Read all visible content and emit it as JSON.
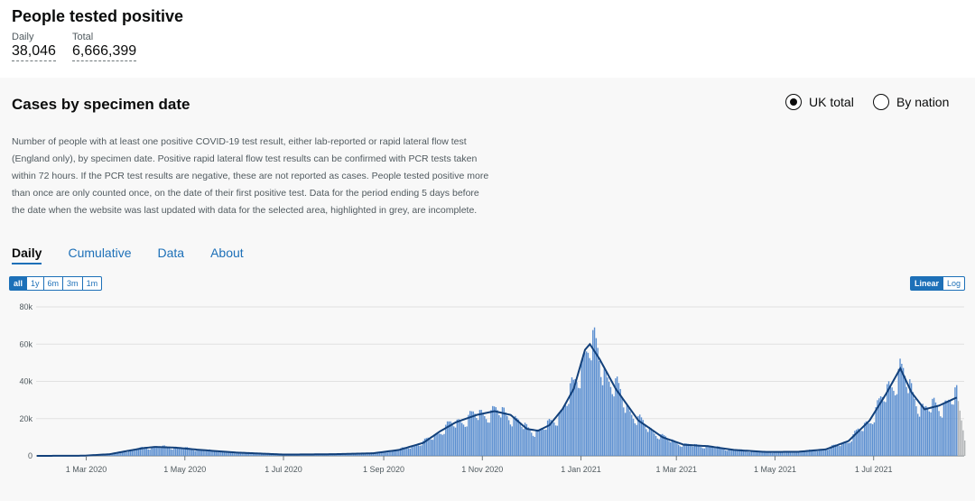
{
  "headline": {
    "title": "People tested positive",
    "daily_label": "Daily",
    "daily_value": "38,046",
    "total_label": "Total",
    "total_value": "6,666,399"
  },
  "card": {
    "title": "Cases by specimen date",
    "radio_uk": "UK total",
    "radio_nation": "By nation",
    "description": "Number of people with at least one positive COVID-19 test result, either lab-reported or rapid lateral flow test (England only), by specimen date. Positive rapid lateral flow test results can be confirmed with PCR tests taken within 72 hours. If the PCR test results are negative, these are not reported as cases. People tested positive more than once are only counted once, on the date of their first positive test. Data for the period ending 5 days before the date when the website was last updated with data for the selected area, highlighted in grey, are incomplete.",
    "tabs": [
      "Daily",
      "Cumulative",
      "Data",
      "About"
    ],
    "range_buttons": [
      "all",
      "1y",
      "6m",
      "3m",
      "1m"
    ],
    "scale_buttons": [
      "Linear",
      "Log"
    ]
  },
  "colors": {
    "bar": "#5b8fd0",
    "bar_incomplete": "#b1b4b6",
    "average_line": "#12407a",
    "accent": "#1d70b8"
  },
  "chart_data": {
    "type": "bar",
    "title": "",
    "xlabel": "",
    "ylabel": "",
    "ylim": [
      0,
      80000
    ],
    "y_ticks": [
      0,
      20000,
      40000,
      60000,
      80000
    ],
    "y_tick_labels": [
      "0",
      "20k",
      "40k",
      "60k",
      "80k"
    ],
    "x_range": [
      "2020-01-30",
      "2021-08-26"
    ],
    "x_ticks": [
      {
        "date": "2020-03-01",
        "label": "1 Mar 2020"
      },
      {
        "date": "2020-05-01",
        "label": "1 May 2020"
      },
      {
        "date": "2020-07-01",
        "label": "1 Jul 2020"
      },
      {
        "date": "2020-09-01",
        "label": "1 Sep 2020"
      },
      {
        "date": "2020-11-01",
        "label": "1 Nov 2020"
      },
      {
        "date": "2021-01-01",
        "label": "1 Jan 2021"
      },
      {
        "date": "2021-03-01",
        "label": "1 Mar 2021"
      },
      {
        "date": "2021-05-01",
        "label": "1 May 2021"
      },
      {
        "date": "2021-07-01",
        "label": "1 Jul 2021"
      }
    ],
    "series": [
      {
        "values": [
          {
            "date": "2020-01-30",
            "value": 0
          },
          {
            "date": "2020-02-28",
            "value": 100
          },
          {
            "date": "2020-03-15",
            "value": 900
          },
          {
            "date": "2020-03-25",
            "value": 2500
          },
          {
            "date": "2020-04-05",
            "value": 4200
          },
          {
            "date": "2020-04-12",
            "value": 4800
          },
          {
            "date": "2020-04-25",
            "value": 4400
          },
          {
            "date": "2020-05-10",
            "value": 3200
          },
          {
            "date": "2020-06-01",
            "value": 1800
          },
          {
            "date": "2020-07-01",
            "value": 700
          },
          {
            "date": "2020-08-01",
            "value": 900
          },
          {
            "date": "2020-08-25",
            "value": 1400
          },
          {
            "date": "2020-09-10",
            "value": 3200
          },
          {
            "date": "2020-09-25",
            "value": 7000
          },
          {
            "date": "2020-10-05",
            "value": 13000
          },
          {
            "date": "2020-10-15",
            "value": 18000
          },
          {
            "date": "2020-10-28",
            "value": 22000
          },
          {
            "date": "2020-11-08",
            "value": 24000
          },
          {
            "date": "2020-11-18",
            "value": 22000
          },
          {
            "date": "2020-11-28",
            "value": 14500
          },
          {
            "date": "2020-12-05",
            "value": 13500
          },
          {
            "date": "2020-12-12",
            "value": 16500
          },
          {
            "date": "2020-12-20",
            "value": 25000
          },
          {
            "date": "2020-12-27",
            "value": 36000
          },
          {
            "date": "2021-01-03",
            "value": 57000
          },
          {
            "date": "2021-01-06",
            "value": 60000
          },
          {
            "date": "2021-01-12",
            "value": 52000
          },
          {
            "date": "2021-01-22",
            "value": 36000
          },
          {
            "date": "2021-02-05",
            "value": 19000
          },
          {
            "date": "2021-02-20",
            "value": 10000
          },
          {
            "date": "2021-03-05",
            "value": 6000
          },
          {
            "date": "2021-03-20",
            "value": 5200
          },
          {
            "date": "2021-04-05",
            "value": 3200
          },
          {
            "date": "2021-04-25",
            "value": 2100
          },
          {
            "date": "2021-05-15",
            "value": 2200
          },
          {
            "date": "2021-06-01",
            "value": 3500
          },
          {
            "date": "2021-06-15",
            "value": 8000
          },
          {
            "date": "2021-06-28",
            "value": 19000
          },
          {
            "date": "2021-07-08",
            "value": 33000
          },
          {
            "date": "2021-07-17",
            "value": 47000
          },
          {
            "date": "2021-07-24",
            "value": 34000
          },
          {
            "date": "2021-08-01",
            "value": 25000
          },
          {
            "date": "2021-08-10",
            "value": 27000
          },
          {
            "date": "2021-08-20",
            "value": 31000
          },
          {
            "date": "2021-08-26",
            "value": 33000
          }
        ]
      }
    ]
  }
}
